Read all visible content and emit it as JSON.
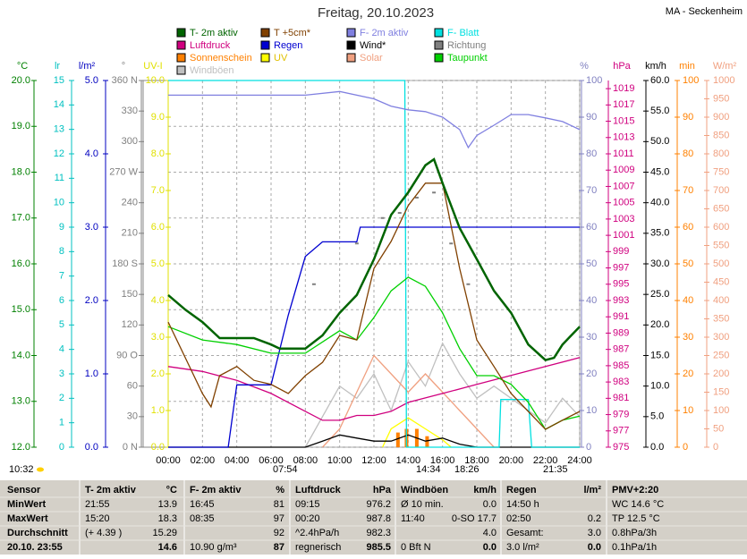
{
  "title": "Freitag, 20.10.2023",
  "station": "MA - Seckenheim",
  "chart_data": {
    "type": "line",
    "grid": true,
    "xlim": [
      0,
      24
    ],
    "xticks": [
      {
        "value": 0,
        "label": "00:00"
      },
      {
        "value": 2,
        "label": "02:00"
      },
      {
        "value": 4,
        "label": "04:00"
      },
      {
        "value": 6,
        "label": "06:00"
      },
      {
        "value": 8,
        "label": "08:00"
      },
      {
        "value": 10,
        "label": "10:00"
      },
      {
        "value": 12,
        "label": "12:00"
      },
      {
        "value": 14,
        "label": "14:00"
      },
      {
        "value": 16,
        "label": "16:00"
      },
      {
        "value": 18,
        "label": "18:00"
      },
      {
        "value": 20,
        "label": "20:00"
      },
      {
        "value": 22,
        "label": "22:00"
      },
      {
        "value": 24,
        "label": "24:00"
      }
    ],
    "axes": [
      {
        "label": "°C",
        "color": "#008000",
        "lim": [
          12,
          20
        ],
        "ticks": [
          {
            "value": 20,
            "label": "20.0"
          },
          {
            "value": 19,
            "label": "19.0"
          },
          {
            "value": 18,
            "label": "18.0"
          },
          {
            "value": 17,
            "label": "17.0"
          },
          {
            "value": 16,
            "label": "16.0"
          },
          {
            "value": 15,
            "label": "15.0"
          },
          {
            "value": 14,
            "label": "14.0"
          },
          {
            "value": 13,
            "label": "13.0"
          },
          {
            "value": 12,
            "label": "12.0"
          }
        ],
        "series": [
          {
            "name": "T- 2m aktiv",
            "color": "#006400",
            "x": [
              0,
              1,
              2,
              3,
              4,
              5,
              6,
              6.5,
              7,
              8,
              9,
              10,
              11,
              12,
              13,
              14,
              15,
              15.5,
              16,
              17,
              18,
              19,
              20,
              21,
              22,
              22.5,
              23,
              24
            ],
            "values": [
              15.32,
              15.0,
              14.73,
              14.38,
              14.38,
              14.38,
              14.24,
              14.15,
              14.15,
              14.15,
              14.44,
              14.93,
              15.32,
              16.1,
              17.07,
              17.56,
              18.15,
              18.28,
              17.76,
              16.78,
              16.1,
              15.41,
              14.93,
              14.24,
              13.9,
              13.95,
              14.24,
              14.63
            ]
          },
          {
            "name": "T +5cm*",
            "color": "#804000",
            "x": [
              0,
              1,
              2,
              2.5,
              3,
              4,
              5,
              6,
              7,
              8,
              9,
              10,
              11,
              12,
              13,
              14,
              15,
              16,
              17,
              18,
              19,
              20,
              21,
              22,
              23,
              24
            ],
            "values": [
              14.73,
              13.95,
              13.17,
              12.88,
              13.56,
              13.76,
              13.46,
              13.37,
              13.17,
              13.56,
              13.85,
              14.44,
              14.34,
              15.9,
              16.49,
              17.27,
              17.76,
              17.76,
              15.9,
              14.34,
              13.76,
              13.17,
              12.78,
              12.39,
              12.59,
              12.78
            ]
          },
          {
            "name": "Taupunkt",
            "color": "#00d000",
            "x": [
              0,
              2,
              4,
              6,
              8,
              10,
              11,
              12,
              13,
              14,
              15,
              16,
              17,
              18,
              19,
              20,
              21,
              22,
              23,
              24
            ],
            "values": [
              14.63,
              14.34,
              14.24,
              14.05,
              14.05,
              14.54,
              14.34,
              14.83,
              15.41,
              15.71,
              15.51,
              14.93,
              14.15,
              13.56,
              13.56,
              13.37,
              12.98,
              12.39,
              12.59,
              12.68
            ]
          }
        ]
      },
      {
        "label": "lr",
        "color": "#00c0c0",
        "lim": [
          0,
          15
        ],
        "ticks": [
          15,
          14,
          13,
          12,
          11,
          10,
          9,
          8,
          7,
          6,
          5,
          4,
          3,
          2,
          1,
          0
        ]
      },
      {
        "label": "l/m²",
        "color": "#0000c0",
        "lim": [
          0,
          5
        ],
        "ticks": [
          {
            "value": 5,
            "label": "5.0"
          },
          {
            "value": 4,
            "label": "4.0"
          },
          {
            "value": 3,
            "label": "3.0"
          },
          {
            "value": 2,
            "label": "2.0"
          },
          {
            "value": 1,
            "label": "1.0"
          },
          {
            "value": 0,
            "label": "0.0"
          }
        ],
        "series": [
          {
            "name": "Regen",
            "color": "#0000d0",
            "x": [
              0,
              3.5,
              4,
              6,
              7,
              8,
              9,
              11,
              11.2,
              24
            ],
            "values": [
              0,
              0,
              0.85,
              0.85,
              1.8,
              2.6,
              2.8,
              2.8,
              3.0,
              3.0
            ]
          }
        ]
      },
      {
        "label": "°",
        "color": "#808080",
        "lim": [
          0,
          360
        ],
        "ticks": [
          {
            "value": 360,
            "label": "360 N"
          },
          330,
          300,
          {
            "value": 270,
            "label": "270 W"
          },
          240,
          210,
          {
            "value": 180,
            "label": "180 S"
          },
          150,
          120,
          {
            "value": 90,
            "label": "90 O"
          },
          60,
          30,
          {
            "value": 0,
            "label": "0 N"
          }
        ],
        "series": [
          {
            "name": "Richtung",
            "color": "#808080",
            "type": "scatter",
            "x": [
              8.5,
              11,
              12.5,
              13.5,
              14.5,
              15.5,
              16.5,
              17.5
            ],
            "values": [
              160,
              200,
              225,
              230,
              245,
              250,
              200,
              160
            ]
          }
        ]
      },
      {
        "label": "UV-I",
        "color": "#e0e000",
        "lim": [
          0,
          10
        ],
        "ticks": [
          {
            "value": 10,
            "label": "10.0"
          },
          {
            "value": 9,
            "label": "9.0"
          },
          {
            "value": 8,
            "label": "8.0"
          },
          {
            "value": 7,
            "label": "7.0"
          },
          {
            "value": 6,
            "label": "6.0"
          },
          {
            "value": 5,
            "label": "5.0"
          },
          {
            "value": 4,
            "label": "4.0"
          },
          {
            "value": 3,
            "label": "3.0"
          },
          {
            "value": 2,
            "label": "2.0"
          },
          {
            "value": 1,
            "label": "1.0"
          },
          {
            "value": 0,
            "label": "0.0"
          }
        ],
        "series": [
          {
            "name": "UV",
            "color": "#ffff00",
            "x": [
              12.5,
              13,
              14,
              15,
              16,
              16.5
            ],
            "values": [
              0,
              0.5,
              0.8,
              0.5,
              0.2,
              0
            ]
          }
        ]
      },
      {
        "label": "%",
        "color": "#8080c0",
        "lim": [
          0,
          100
        ],
        "ticks": [
          100,
          90,
          80,
          70,
          60,
          50,
          40,
          30,
          20,
          10,
          0
        ],
        "series": [
          {
            "name": "F- 2m aktiv",
            "color": "#8080e0",
            "x": [
              0,
              8,
              10,
              12,
              13,
              14,
              15,
              16,
              17,
              17.5,
              18,
              19,
              20,
              21,
              22,
              23,
              24
            ],
            "values": [
              96,
              96,
              97,
              95,
              93,
              92,
              91.5,
              90,
              86.6,
              81.7,
              85,
              87.8,
              90.7,
              90.7,
              89.8,
              88.8,
              86.6
            ]
          },
          {
            "name": "F- Blatt",
            "color": "#00e0e0",
            "x": [
              0,
              13.8,
              13.9,
              19.3,
              19.4,
              21,
              21.2,
              24
            ],
            "values": [
              100,
              100,
              0,
              0,
              13,
              13,
              0,
              0
            ]
          }
        ]
      },
      {
        "label": "hPa",
        "color": "#d0007f",
        "lim": [
          975,
          1020
        ],
        "ticks": [
          1019,
          1017,
          1015,
          1013,
          1011,
          1009,
          1007,
          1005,
          1003,
          1001,
          999,
          997,
          995,
          993,
          991,
          989,
          987,
          985,
          983,
          981,
          979,
          977,
          975
        ],
        "series": [
          {
            "name": "Luftdruck",
            "color": "#d0007f",
            "x": [
              0,
              2,
              4,
              6,
              8,
              9,
              10,
              11,
              12,
              13,
              14,
              16,
              18,
              20,
              22,
              24
            ],
            "values": [
              984.9,
              984.3,
              983.2,
              981.6,
              979.4,
              978.3,
              978.3,
              978.9,
              978.9,
              979.4,
              980.5,
              981.6,
              982.7,
              983.8,
              984.9,
              986
            ]
          }
        ]
      },
      {
        "label": "km/h",
        "color": "#000000",
        "lim": [
          0,
          60
        ],
        "ticks": [
          {
            "value": 60,
            "label": "60.0"
          },
          {
            "value": 55,
            "label": "55.0"
          },
          {
            "value": 50,
            "label": "50.0"
          },
          {
            "value": 45,
            "label": "45.0"
          },
          {
            "value": 40,
            "label": "40.0"
          },
          {
            "value": 35,
            "label": "35.0"
          },
          {
            "value": 30,
            "label": "30.0"
          },
          {
            "value": 25,
            "label": "25.0"
          },
          {
            "value": 20,
            "label": "20.0"
          },
          {
            "value": 15,
            "label": "15.0"
          },
          {
            "value": 10,
            "label": "10.0"
          },
          {
            "value": 5,
            "label": "5.0"
          },
          {
            "value": 0,
            "label": "0.0"
          }
        ],
        "series": [
          {
            "name": "Wind*",
            "color": "#000000",
            "x": [
              0,
              8,
              9,
              10,
              11,
              12,
              13,
              14,
              15,
              16,
              17,
              18,
              24
            ],
            "values": [
              0,
              0,
              1,
              2,
              1.5,
              1,
              1,
              2,
              1,
              1.5,
              0.5,
              0,
              0
            ]
          },
          {
            "name": "Windböen",
            "color": "#c0c0c0",
            "x": [
              8,
              9,
              10,
              11,
              12,
              13,
              14,
              15,
              16,
              17,
              18,
              19,
              20,
              21,
              22,
              23,
              24
            ],
            "values": [
              0,
              5,
              10,
              8,
              12,
              6,
              14,
              10,
              17,
              12,
              8,
              10,
              8,
              6,
              4,
              8,
              5
            ]
          }
        ]
      },
      {
        "label": "min",
        "color": "#ff8000",
        "lim": [
          0,
          100
        ],
        "ticks": [
          100,
          90,
          80,
          70,
          60,
          50,
          40,
          30,
          20,
          10,
          0
        ],
        "series": [
          {
            "name": "Sonnenschein",
            "color": "#ff8000",
            "type": "bar",
            "x": [
              13.4,
              13.9,
              14.5,
              15.1
            ],
            "values": [
              4,
              5,
              5,
              3
            ]
          }
        ]
      },
      {
        "label": "W/m²",
        "color": "#f0a080",
        "lim": [
          0,
          1000
        ],
        "ticks": [
          1000,
          950,
          900,
          850,
          800,
          750,
          700,
          650,
          600,
          550,
          500,
          450,
          400,
          350,
          300,
          250,
          200,
          150,
          100,
          50,
          0
        ],
        "series": [
          {
            "name": "Solar",
            "color": "#f0a080",
            "x": [
              9,
              10,
              11,
              12,
              13,
              14,
              15,
              16,
              17,
              18,
              19
            ],
            "values": [
              0,
              50,
              150,
              250,
              200,
              150,
              200,
              150,
              100,
              50,
              0
            ]
          }
        ]
      }
    ]
  },
  "sun_times": [
    "10:32",
    "07:54",
    "14:34",
    "18:26",
    "21:35"
  ],
  "table": {
    "rows": [
      [
        {
          "left": "Sensor"
        },
        {
          "left": "T- 2m aktiv",
          "right": "°C"
        },
        {
          "left": "F- 2m aktiv",
          "right": "%"
        },
        {
          "left": "Luftdruck",
          "right": "hPa"
        },
        {
          "left": "Windböen",
          "right": "km/h"
        },
        {
          "left": "Regen",
          "right": "l/m²"
        },
        {
          "left": "PMV+2:20"
        }
      ],
      [
        {
          "left": "MinWert"
        },
        {
          "left": "21:55",
          "right": "13.9"
        },
        {
          "left": "16:45",
          "right": "81"
        },
        {
          "left": "09:15",
          "right": "976.2"
        },
        {
          "left": "Ø 10 min.",
          "right": "0.0"
        },
        {
          "left": "14:50 h"
        },
        {
          "left": "WC 14.6 °C"
        }
      ],
      [
        {
          "left": "MaxWert"
        },
        {
          "left": "15:20",
          "right": "18.3"
        },
        {
          "left": "08:35",
          "right": "97"
        },
        {
          "left": "00:20",
          "right": "987.8"
        },
        {
          "left": "11:40",
          "right": "0-SO 17.7"
        },
        {
          "left": "02:50",
          "right": "0.2"
        },
        {
          "left": "TP 12.5 °C"
        }
      ],
      [
        {
          "left": "Durchschnitt"
        },
        {
          "left": "(+ 4.39 )",
          "right": "15.29"
        },
        {
          "right": "92"
        },
        {
          "left": "^2.4hPa/h",
          "right": "982.3"
        },
        {
          "right": "4.0"
        },
        {
          "left": "Gesamt:",
          "right": "3.0"
        },
        {
          "left": "0.8hPa/3h"
        }
      ],
      [
        {
          "left": "20.10. 23:55"
        },
        {
          "right": "14.6"
        },
        {
          "left": "10.90 g/m³",
          "right": "87"
        },
        {
          "left": "regnerisch",
          "right": "985.5"
        },
        {
          "left": "0 Bft N",
          "right": "0.0"
        },
        {
          "left": "3.0 l/m²",
          "right": "0.0"
        },
        {
          "left": "0.1hPa/1h"
        }
      ]
    ]
  }
}
